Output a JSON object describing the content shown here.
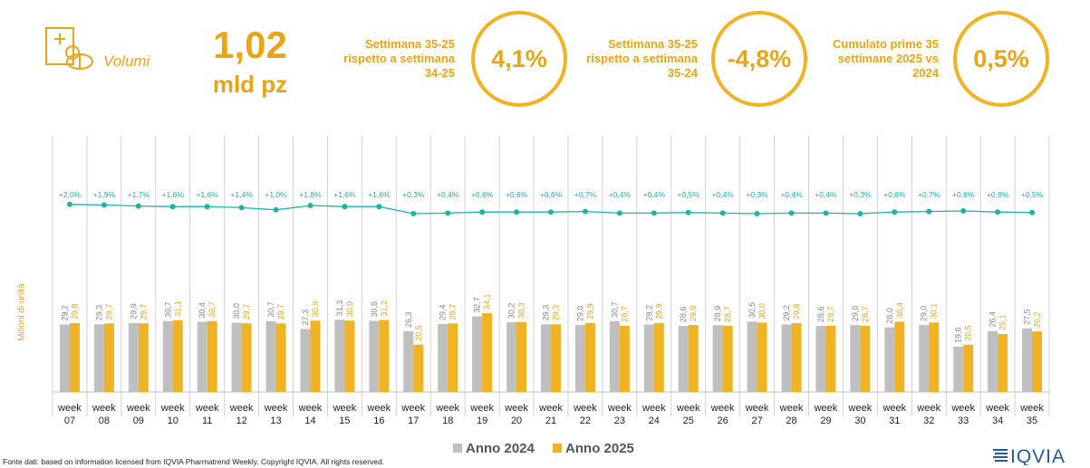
{
  "colors": {
    "accent": "#E8A517",
    "anno2024": "#BFBFBF",
    "anno2025": "#F0B323",
    "trend": "#1BB4A6",
    "logo": "#1F5C99"
  },
  "kpi": {
    "label": "Volumi",
    "value": "1,02",
    "unit": "mld pz",
    "icon": "pills-document-icon"
  },
  "circles": [
    {
      "caption": "Settimana 35-25 rispetto a settimana 34-25",
      "value": "4,1%"
    },
    {
      "caption": "Settimana 35-25 rispetto a settimana 35-24",
      "value": "-4,8%"
    },
    {
      "caption": "Cumulato prime 35 settimane 2025 vs 2024",
      "value": "0,5%"
    }
  ],
  "chart_data": {
    "type": "bar",
    "ylabel": "Milioni di unità",
    "categories": [
      "week 07",
      "week 08",
      "week 09",
      "week 10",
      "week 11",
      "week 12",
      "week 13",
      "week 14",
      "week 15",
      "week 16",
      "week 17",
      "week 18",
      "week 19",
      "week 20",
      "week 21",
      "week 22",
      "week 23",
      "week 24",
      "week 25",
      "week 26",
      "week 27",
      "week 28",
      "week 29",
      "week 30",
      "week 31",
      "week 32",
      "week 33",
      "week 34",
      "week 35"
    ],
    "series": [
      {
        "name": "Anno 2024",
        "values": [
          29.2,
          29.3,
          29.9,
          30.7,
          30.4,
          30.0,
          30.7,
          27.3,
          31.3,
          30.8,
          26.3,
          29.4,
          32.7,
          30.2,
          29.3,
          29.0,
          30.7,
          29.2,
          28.6,
          28.9,
          30.5,
          29.2,
          28.6,
          29.0,
          28.0,
          29.0,
          19.6,
          26.4,
          27.5
        ]
      },
      {
        "name": "Anno 2025",
        "values": [
          29.8,
          29.7,
          29.7,
          31.1,
          30.7,
          29.7,
          29.7,
          30.9,
          30.9,
          31.2,
          20.5,
          29.7,
          34.1,
          30.3,
          29.3,
          29.9,
          28.7,
          29.9,
          29.0,
          28.7,
          30.0,
          29.8,
          28.7,
          28.7,
          30.4,
          30.1,
          20.5,
          25.1,
          26.2
        ]
      }
    ],
    "growth_labels": [
      "+2,0%",
      "+1,9%",
      "+1,7%",
      "+1,6%",
      "+1,6%",
      "+1,4%",
      "+1,0%",
      "+1,8%",
      "+1,6%",
      "+1,6%",
      "+0,3%",
      "+0,4%",
      "+0,6%",
      "+0,6%",
      "+0,6%",
      "+0,7%",
      "+0,4%",
      "+0,4%",
      "+0,5%",
      "+0,4%",
      "+0,3%",
      "+0,4%",
      "+0,4%",
      "+0,3%",
      "+0,6%",
      "+0,7%",
      "+0,8%",
      "+0,6%",
      "+0,5%"
    ],
    "growth_values": [
      2.0,
      1.9,
      1.7,
      1.6,
      1.6,
      1.4,
      1.0,
      1.8,
      1.6,
      1.6,
      0.3,
      0.4,
      0.6,
      0.6,
      0.6,
      0.7,
      0.4,
      0.4,
      0.5,
      0.4,
      0.3,
      0.4,
      0.4,
      0.3,
      0.6,
      0.7,
      0.8,
      0.6,
      0.5
    ],
    "legend_position": "bottom"
  },
  "legend": {
    "a2024": "Anno 2024",
    "a2025": "Anno 2025"
  },
  "footer": {
    "source": "Fonte dati: based on information licensed from IQVIA Pharmatrend Weekly. Copyright IQVIA. All rights reserved.",
    "logo_text": "IQVIA"
  }
}
